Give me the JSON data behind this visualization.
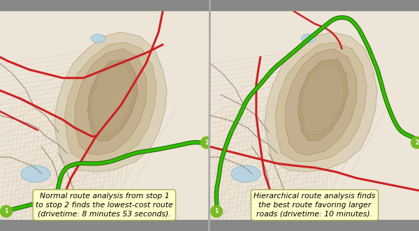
{
  "left_text": "Normal route analysis from stop 1\nto stop 2 finds the lowest-cost route\n(drivetime: 8 minutes 53 seconds).",
  "right_text": "Hierarchical route analysis finds\nthe best route favoring larger\nroads (drivetime: 10 minutes).",
  "text_box_facecolor": "#ffffcc",
  "text_box_edgecolor": "#aaa855",
  "text_fontsize": 7.8,
  "fig_width": 6.0,
  "fig_height": 3.31,
  "map_bg": "#ede5d8",
  "terrain_outer": "#ddd0b8",
  "terrain_mid": "#cfc0a0",
  "terrain_inner": "#c4b090",
  "terrain_core": "#b8a480",
  "water_color": "#b8d4e0",
  "water_edge": "#90b8cc",
  "street_minor": "#d8c8b0",
  "street_major_gray": "#a09080",
  "red_road_color": "#cc2020",
  "green_dark": "#1a6600",
  "green_bright": "#33bb00",
  "stop_circle_color": "#77bb22",
  "divider_color": "#aaaaaa"
}
